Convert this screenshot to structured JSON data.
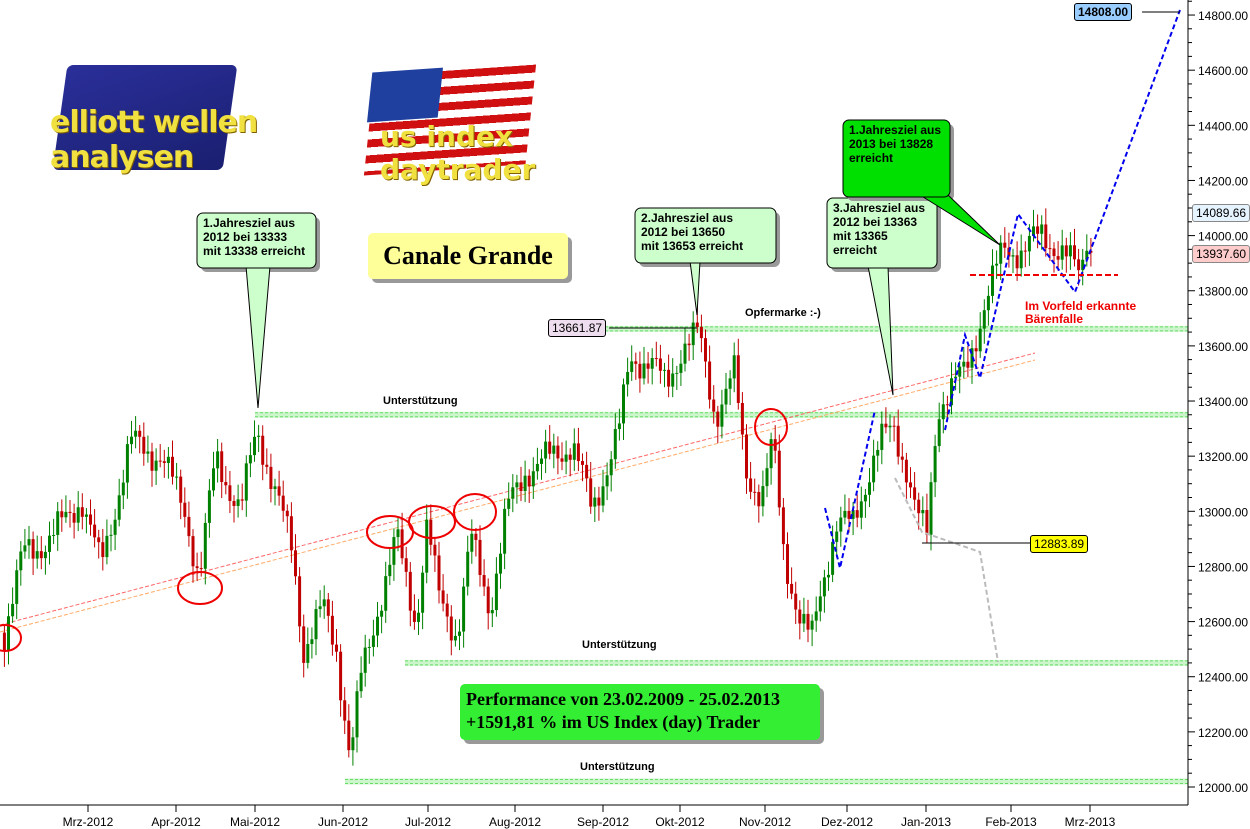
{
  "logos": {
    "left": "elliott wellen analysen",
    "right": "us index daytrader"
  },
  "title_box": "Canale Grande",
  "performance": {
    "line1": "Performance von 23.02.2009 - 25.02.2013",
    "line2": "+1591,81 % im US Index (day) Trader"
  },
  "callouts": [
    {
      "text": "1.Jahresziel aus\n2012 bei 13333\nmit 13338 erreicht",
      "color": "#ccffcc"
    },
    {
      "text": "2.Jahresziel aus\n2012 bei 13650\nmit 13653 erreicht",
      "color": "#ccffcc"
    },
    {
      "text": "3.Jahresziel aus\n2012 bei 13363\nmit 13365\nerreicht",
      "color": "#ccffcc"
    },
    {
      "text": "1.Jahresziel aus\n2013 bei 13828\nerreicht",
      "color": "#00e000"
    }
  ],
  "annotations": {
    "opfermarke": "Opfermarke :-)",
    "support1": "Unterstützung",
    "support2": "Unterstützung",
    "support3": "Unterstützung",
    "bear_trap": "Im Vorfeld erkannte\nBärenfalle"
  },
  "price_labels": {
    "high": "13661.87",
    "low": "12883.89",
    "target": "14808.00",
    "last_blue": "14089.66",
    "last_red": "13937.60"
  },
  "chart_data": {
    "type": "candlestick",
    "title": "Canale Grande",
    "y_axis": {
      "ticks": [
        "12000.00",
        "12200.00",
        "12400.00",
        "12600.00",
        "12800.00",
        "13000.00",
        "13200.00",
        "13400.00",
        "13600.00",
        "13800.00",
        "14000.00",
        "14200.00",
        "14400.00",
        "14600.00",
        "14800.00"
      ],
      "range": [
        12000,
        14800
      ],
      "position": "right"
    },
    "x_axis": {
      "ticks": [
        "Mrz-2012",
        "Apr-2012",
        "Mai-2012",
        "Jun-2012",
        "Jul-2012",
        "Aug-2012",
        "Sep-2012",
        "Okt-2012",
        "Nov-2012",
        "Dez-2012",
        "Jan-2013",
        "Feb-2013",
        "Mrz-2013"
      ]
    },
    "colors": {
      "up": "#008000",
      "down": "#c00000",
      "support": "#66dd66",
      "channel": "#ff6666",
      "projection": "#0000ee"
    },
    "close_path": [
      [
        "2012-01-30",
        12560
      ],
      [
        "2012-02-06",
        12850
      ],
      [
        "2012-02-16",
        12900
      ],
      [
        "2012-02-27",
        13050
      ],
      [
        "2012-03-05",
        12800
      ],
      [
        "2012-03-16",
        13250
      ],
      [
        "2012-03-27",
        13200
      ],
      [
        "2012-04-05",
        13000
      ],
      [
        "2012-04-10",
        12750
      ],
      [
        "2012-04-16",
        13200
      ],
      [
        "2012-04-25",
        13000
      ],
      [
        "2012-05-01",
        13300
      ],
      [
        "2012-05-07",
        13100
      ],
      [
        "2012-05-14",
        12850
      ],
      [
        "2012-05-18",
        12500
      ],
      [
        "2012-05-25",
        12650
      ],
      [
        "2012-05-30",
        12500
      ],
      [
        "2012-06-04",
        12100
      ],
      [
        "2012-06-08",
        12400
      ],
      [
        "2012-06-14",
        12650
      ],
      [
        "2012-06-21",
        12900
      ],
      [
        "2012-06-28",
        12600
      ],
      [
        "2012-07-02",
        12950
      ],
      [
        "2012-07-06",
        12700
      ],
      [
        "2012-07-13",
        12550
      ],
      [
        "2012-07-18",
        12900
      ],
      [
        "2012-07-25",
        12650
      ],
      [
        "2012-07-31",
        13000
      ],
      [
        "2012-08-07",
        13150
      ],
      [
        "2012-08-17",
        13200
      ],
      [
        "2012-08-24",
        13250
      ],
      [
        "2012-08-31",
        13000
      ],
      [
        "2012-09-10",
        13300
      ],
      [
        "2012-09-14",
        13550
      ],
      [
        "2012-09-21",
        13550
      ],
      [
        "2012-09-27",
        13450
      ],
      [
        "2012-10-03",
        13600
      ],
      [
        "2012-10-09",
        13640
      ],
      [
        "2012-10-15",
        13350
      ],
      [
        "2012-10-22",
        13500
      ],
      [
        "2012-10-26",
        13150
      ],
      [
        "2012-11-01",
        13050
      ],
      [
        "2012-11-05",
        13250
      ],
      [
        "2012-11-09",
        12850
      ],
      [
        "2012-11-15",
        12600
      ],
      [
        "2012-11-19",
        12530
      ],
      [
        "2012-11-23",
        12750
      ],
      [
        "2012-11-28",
        12950
      ],
      [
        "2012-12-04",
        12950
      ],
      [
        "2012-12-10",
        13150
      ],
      [
        "2012-12-14",
        13250
      ],
      [
        "2012-12-19",
        13300
      ],
      [
        "2012-12-24",
        13150
      ],
      [
        "2012-12-27",
        13000
      ],
      [
        "2012-12-31",
        12900
      ],
      [
        "2013-01-04",
        13380
      ],
      [
        "2013-01-09",
        13450
      ],
      [
        "2013-01-14",
        13500
      ],
      [
        "2013-01-21",
        13750
      ],
      [
        "2013-01-28",
        13950
      ],
      [
        "2013-02-04",
        13950
      ],
      [
        "2013-02-11",
        14000
      ],
      [
        "2013-02-18",
        13950
      ],
      [
        "2013-02-25",
        13850
      ],
      [
        "2013-02-28",
        14050
      ],
      [
        "2013-03-01",
        13937.6
      ]
    ],
    "support_levels": [
      13661.87,
      13350,
      12450,
      12020
    ],
    "projection_target": 14808.0
  }
}
